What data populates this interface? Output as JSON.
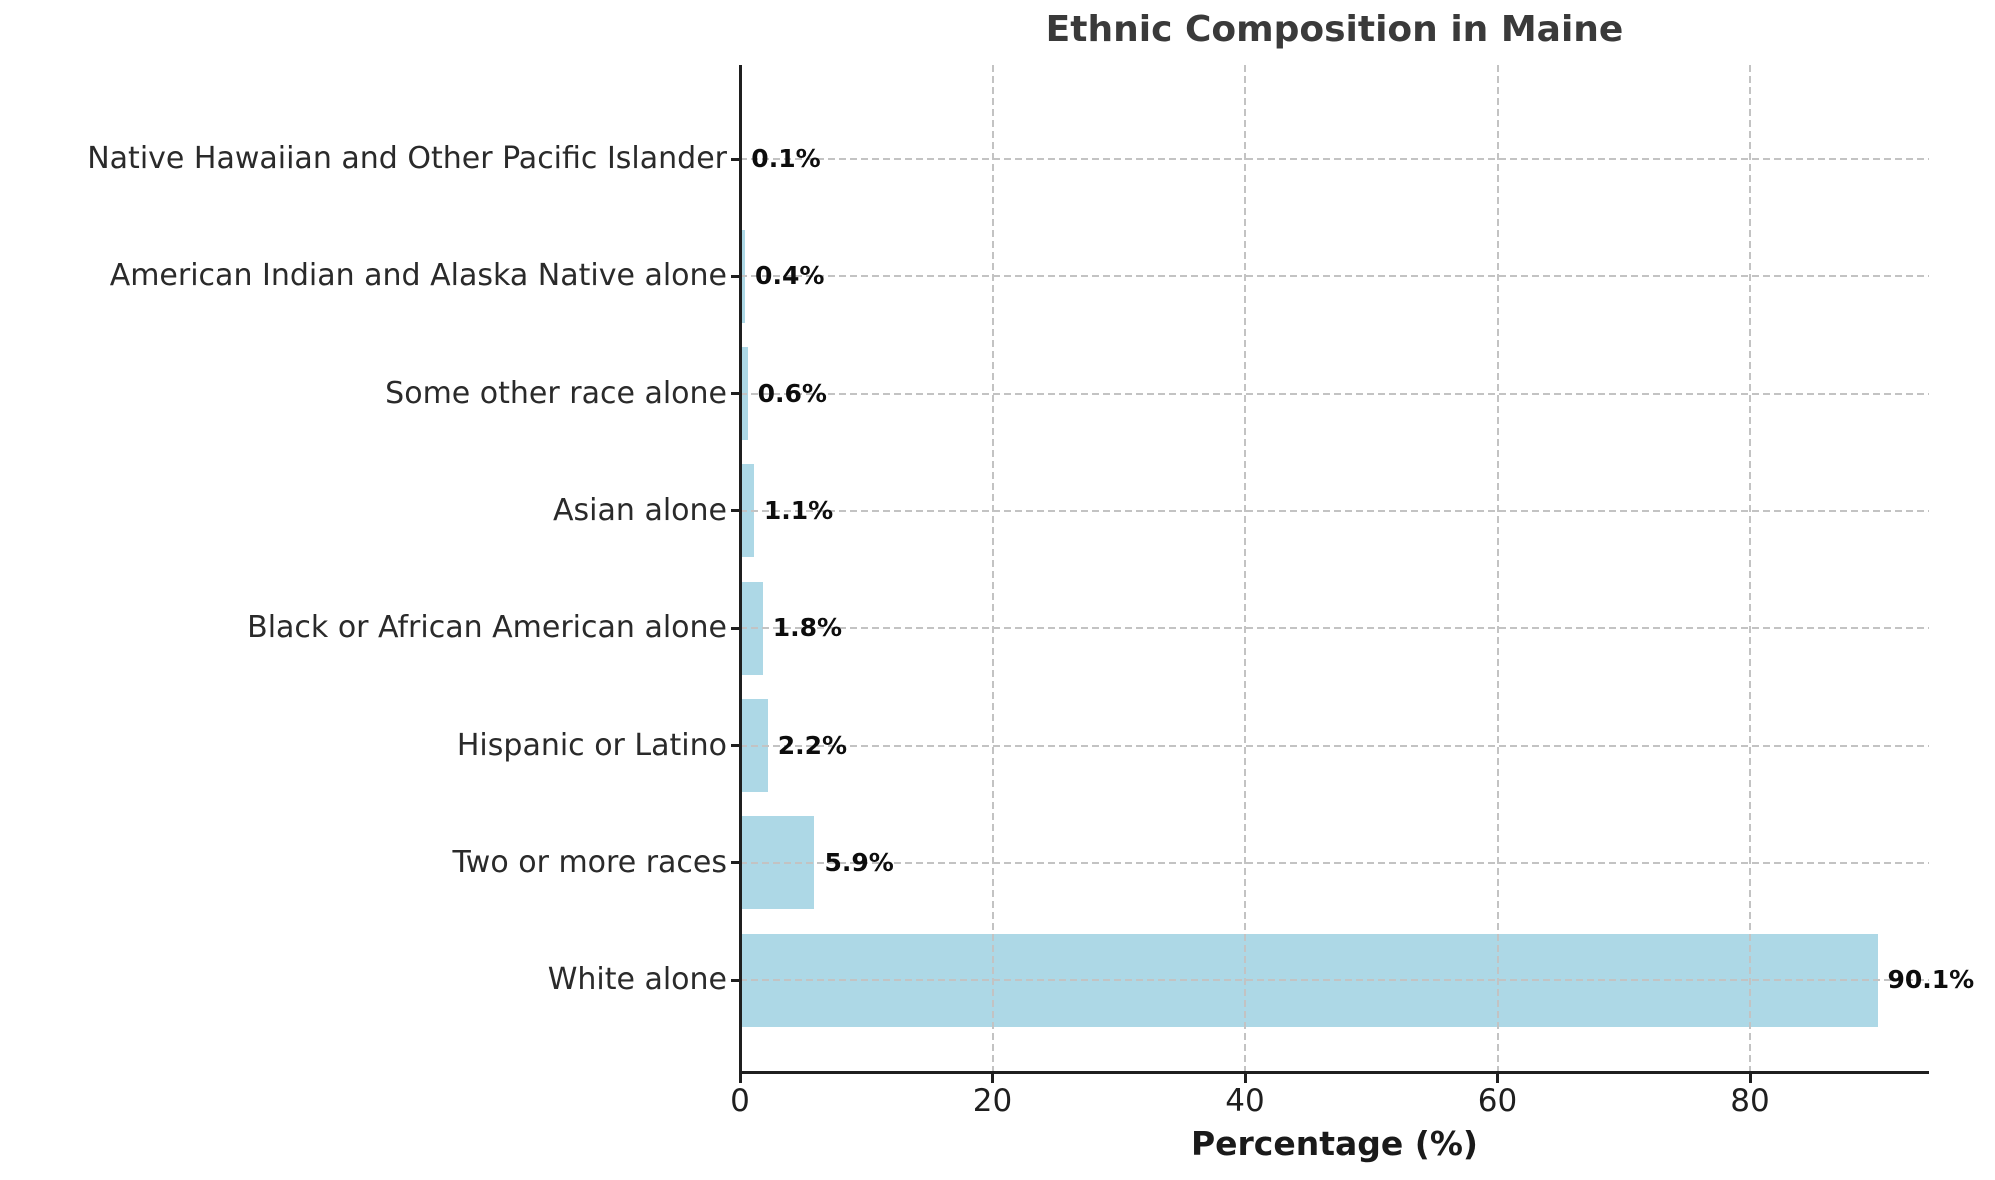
{
  "chart_data": {
    "type": "bar",
    "orientation": "horizontal",
    "title": "Ethnic Composition in Maine",
    "xlabel": "Percentage (%)",
    "ylabel": "",
    "categories": [
      "Native Hawaiian and Other Pacific Islander",
      "American Indian and Alaska Native alone",
      "Some other race alone",
      "Asian alone",
      "Black or African American alone",
      "Hispanic or Latino",
      "Two or more races",
      "White alone"
    ],
    "category_order": "top to bottom",
    "values": [
      0.1,
      0.4,
      0.6,
      1.1,
      1.8,
      2.2,
      5.9,
      90.1
    ],
    "value_labels": [
      "0.1%",
      "0.4%",
      "0.6%",
      "1.1%",
      "1.8%",
      "2.2%",
      "5.9%",
      "90.1%"
    ],
    "x_tick_values": [
      0,
      20,
      40,
      60,
      80
    ],
    "x_tick_labels": [
      "0",
      "20",
      "40",
      "60",
      "80"
    ],
    "xlim": [
      0,
      94.2
    ],
    "grid": "dashed, both axes, drawn over bars",
    "legend_position": "none",
    "bar_color": "#ADD8E6"
  },
  "colors": {
    "background": "#FFFFFF",
    "bar": "#ADD8E6",
    "grid": "#C3C3C3",
    "axis": "#1F1F1F",
    "title_text": "#3A3A3A",
    "category_text": "#2A2A2A",
    "value_text": "#0D0D0D",
    "tick_text": "#1F1F1F"
  }
}
